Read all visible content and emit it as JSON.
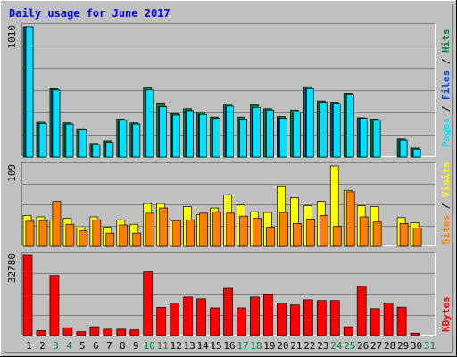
{
  "title": "Daily usage for June 2017",
  "colors": {
    "background": "#c0c0c0",
    "title": "#0000ff",
    "hits": "#008040",
    "files": "#0040ff",
    "pages": "#00e0ff",
    "visits": "#ffff00",
    "sites": "#ff8000",
    "kbytes": "#ff0000",
    "weekend_day": "#008040",
    "weekday": "#000000"
  },
  "chart_data": [
    {
      "type": "bar",
      "panel": "hits-files-pages",
      "categories": [
        "1",
        "2",
        "3",
        "4",
        "5",
        "6",
        "7",
        "8",
        "9",
        "10",
        "11",
        "12",
        "13",
        "14",
        "15",
        "16",
        "17",
        "18",
        "19",
        "20",
        "21",
        "22",
        "23",
        "24",
        "25",
        "26",
        "27",
        "28",
        "29",
        "30",
        "31"
      ],
      "max_label": "1010",
      "ylim": [
        0,
        1010
      ],
      "legend": {
        "hits": "Hits",
        "files": "Files",
        "pages": "Pages",
        "sep1": " / ",
        "sep2": " / "
      },
      "series": [
        {
          "name": "Hits",
          "values": [
            1010,
            270,
            530,
            265,
            220,
            105,
            125,
            295,
            265,
            540,
            420,
            335,
            375,
            350,
            310,
            410,
            310,
            405,
            375,
            315,
            365,
            545,
            435,
            425,
            495,
            305,
            295,
            0,
            140,
            70,
            0
          ]
        },
        {
          "name": "Files",
          "values": [
            1010,
            260,
            520,
            255,
            210,
            95,
            115,
            285,
            255,
            520,
            390,
            325,
            360,
            330,
            300,
            395,
            295,
            385,
            365,
            300,
            350,
            530,
            425,
            415,
            485,
            300,
            285,
            0,
            130,
            60,
            0
          ]
        },
        {
          "name": "Pages",
          "values": [
            1010,
            260,
            520,
            255,
            210,
            95,
            115,
            285,
            255,
            520,
            390,
            325,
            360,
            330,
            300,
            395,
            295,
            385,
            365,
            300,
            350,
            530,
            425,
            415,
            485,
            300,
            285,
            0,
            130,
            60,
            0
          ]
        }
      ]
    },
    {
      "type": "bar",
      "panel": "visits-sites",
      "categories": [
        "1",
        "2",
        "3",
        "4",
        "5",
        "6",
        "7",
        "8",
        "9",
        "10",
        "11",
        "12",
        "13",
        "14",
        "15",
        "16",
        "17",
        "18",
        "19",
        "20",
        "21",
        "22",
        "23",
        "24",
        "25",
        "26",
        "27",
        "28",
        "29",
        "30",
        "31"
      ],
      "max_label": "109",
      "ylim": [
        0,
        109
      ],
      "legend": {
        "visits": "Visits",
        "sites": "Sites",
        "sep": " / "
      },
      "series": [
        {
          "name": "Visits",
          "values": [
            42,
            40,
            36,
            38,
            25,
            40,
            26,
            36,
            30,
            58,
            58,
            35,
            54,
            43,
            52,
            70,
            56,
            47,
            46,
            82,
            66,
            55,
            61,
            109,
            76,
            55,
            54,
            0,
            39,
            32,
            0
          ]
        },
        {
          "name": "Sites",
          "values": [
            34,
            35,
            61,
            30,
            21,
            36,
            18,
            29,
            18,
            45,
            52,
            35,
            36,
            45,
            47,
            45,
            41,
            38,
            26,
            46,
            31,
            37,
            42,
            27,
            74,
            40,
            33,
            0,
            31,
            25,
            0
          ]
        }
      ]
    },
    {
      "type": "bar",
      "panel": "kbytes",
      "categories": [
        "1",
        "2",
        "3",
        "4",
        "5",
        "6",
        "7",
        "8",
        "9",
        "10",
        "11",
        "12",
        "13",
        "14",
        "15",
        "16",
        "17",
        "18",
        "19",
        "20",
        "21",
        "22",
        "23",
        "24",
        "25",
        "26",
        "27",
        "28",
        "29",
        "30",
        "31"
      ],
      "max_label": "32780",
      "ylim": [
        0,
        32780
      ],
      "legend": {
        "kbytes": "KBytes"
      },
      "series": [
        {
          "name": "KBytes",
          "values": [
            32780,
            2000,
            24500,
            3200,
            1600,
            3600,
            2600,
            2600,
            2300,
            26000,
            11500,
            13300,
            15700,
            15000,
            11300,
            19300,
            11300,
            15700,
            17000,
            13200,
            12500,
            14600,
            14300,
            14300,
            3600,
            20100,
            11000,
            13300,
            11600,
            1000,
            0
          ]
        }
      ]
    }
  ],
  "weekend_days": [
    "3",
    "4",
    "10",
    "11",
    "17",
    "18",
    "24",
    "25",
    "31"
  ]
}
